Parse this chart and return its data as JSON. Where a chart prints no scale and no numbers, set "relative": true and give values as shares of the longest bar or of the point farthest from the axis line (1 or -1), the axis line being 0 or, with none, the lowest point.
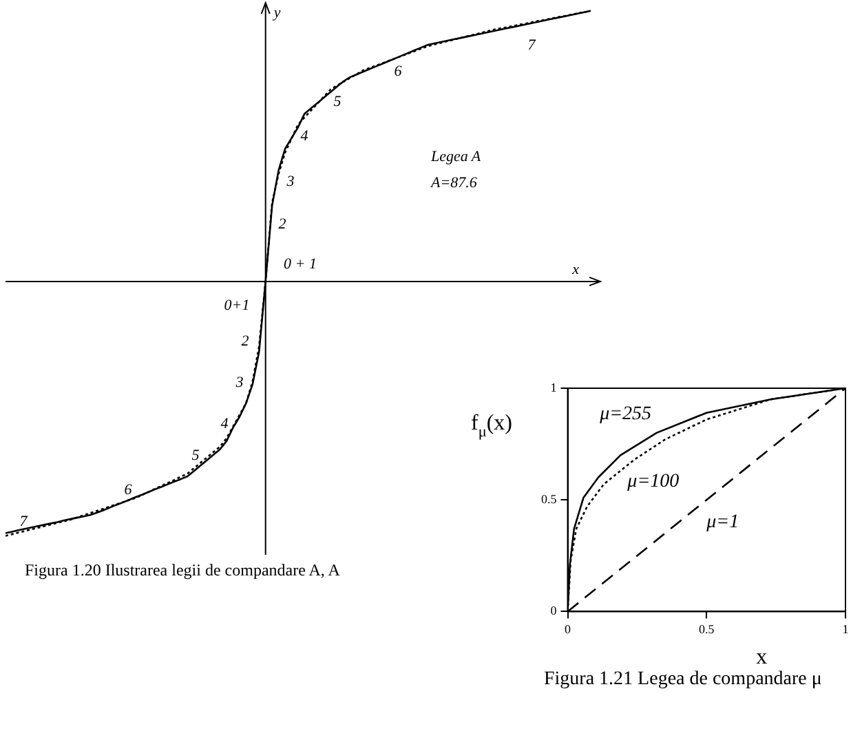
{
  "chart_data": [
    {
      "type": "line",
      "relative": true,
      "title": "Figura 1.20 Ilustrarea legii de compandare A, A",
      "xlabel": "x",
      "ylabel": "y",
      "annotations": [
        "Legea A",
        "A=87.6",
        "0 + 1",
        "2",
        "3",
        "4",
        "5",
        "6",
        "7",
        "0+1",
        "2",
        "3",
        "4",
        "5",
        "6",
        "7"
      ],
      "categories": [
        null,
        null,
        null,
        null,
        null,
        null,
        null,
        null,
        null,
        null,
        null,
        null,
        null,
        null,
        null,
        null,
        null,
        null,
        null,
        null,
        null,
        null,
        null,
        null,
        null,
        null,
        null,
        null,
        null,
        null,
        null,
        null,
        null,
        null,
        null,
        null,
        null,
        null,
        null,
        null,
        null,
        null,
        null,
        null,
        null,
        null,
        null,
        null,
        null,
        null,
        null,
        null,
        null,
        null,
        null,
        null,
        null,
        null,
        null,
        null,
        null,
        null,
        null,
        null,
        null,
        null,
        null,
        null,
        null,
        null,
        null,
        null,
        null,
        null,
        null,
        null,
        null,
        null,
        null,
        null,
        null,
        null,
        null,
        null,
        null,
        null,
        null,
        null,
        null,
        null,
        null
      ],
      "series": [
        {
          "color": "#000000",
          "line_style": "solid",
          "values": [
            -0.93,
            -0.925,
            -0.919,
            -0.914,
            -0.909,
            -0.904,
            -0.899,
            -0.894,
            -0.889,
            -0.883,
            -0.878,
            -0.873,
            -0.868,
            -0.863,
            -0.855,
            -0.846,
            -0.836,
            -0.826,
            -0.817,
            -0.807,
            -0.797,
            -0.788,
            -0.778,
            -0.768,
            -0.759,
            -0.749,
            -0.739,
            -0.73,
            -0.72,
            -0.7,
            -0.68,
            -0.66,
            -0.64,
            -0.62,
            -0.59,
            -0.54,
            -0.5,
            -0.45,
            -0.38,
            -0.26,
            0,
            0.28,
            0.41,
            0.49,
            0.53,
            0.57,
            0.62,
            0.64,
            0.66,
            0.68,
            0.7,
            0.72,
            0.74,
            0.755,
            0.765,
            0.775,
            0.785,
            0.795,
            0.805,
            0.815,
            0.825,
            0.835,
            0.845,
            0.855,
            0.865,
            0.875,
            0.88,
            0.885,
            0.89,
            0.895,
            0.9,
            0.905,
            0.91,
            0.915,
            0.92,
            0.925,
            0.93,
            0.935,
            0.94,
            0.945,
            0.95,
            0.955,
            0.96,
            0.965,
            0.97,
            0.975,
            0.98,
            0.985,
            0.99,
            0.995,
            1
          ]
        },
        {
          "color": "#000000",
          "line_style": "dotted",
          "values": [
            -0.94,
            -0.934,
            -0.928,
            -0.922,
            -0.916,
            -0.91,
            -0.904,
            -0.898,
            -0.892,
            -0.886,
            -0.88,
            -0.872,
            -0.864,
            -0.856,
            -0.848,
            -0.84,
            -0.832,
            -0.824,
            -0.816,
            -0.808,
            -0.8,
            -0.789,
            -0.778,
            -0.766,
            -0.755,
            -0.744,
            -0.733,
            -0.721,
            -0.71,
            -0.69,
            -0.67,
            -0.65,
            -0.63,
            -0.61,
            -0.579,
            -0.536,
            -0.493,
            -0.45,
            -0.37,
            -0.24,
            0,
            0.29,
            0.397,
            0.476,
            0.528,
            0.58,
            0.606,
            0.632,
            0.658,
            0.684,
            0.71,
            0.724,
            0.738,
            0.752,
            0.766,
            0.78,
            0.789,
            0.798,
            0.807,
            0.816,
            0.825,
            0.834,
            0.843,
            0.852,
            0.861,
            0.87,
            0.876,
            0.882,
            0.888,
            0.894,
            0.9,
            0.906,
            0.912,
            0.918,
            0.924,
            0.93,
            0.935,
            0.939,
            0.944,
            0.949,
            0.953,
            0.958,
            0.963,
            0.967,
            0.972,
            0.977,
            0.981,
            0.986,
            0.991,
            0.995,
            1
          ]
        }
      ]
    },
    {
      "type": "line",
      "title": "Figura 1.21 Legea de compandare μ",
      "xlabel": "x",
      "ylabel": "f$_{μ}$(x)",
      "xlim": [
        0,
        1
      ],
      "ylim": [
        0,
        1
      ],
      "xticks": [
        0,
        0.5,
        1
      ],
      "yticks": [
        0,
        0.5,
        1
      ],
      "series": [
        {
          "name": "μ=255",
          "color": "#000000",
          "line_style": "solid",
          "x": [
            0,
            0.008,
            0.023,
            0.057,
            0.11,
            0.19,
            0.32,
            0.5,
            0.73,
            1
          ],
          "values": [
            0,
            0.21,
            0.37,
            0.51,
            0.6,
            0.7,
            0.8,
            0.89,
            0.95,
            1
          ]
        },
        {
          "name": "μ=100",
          "color": "#000000",
          "line_style": "dotted",
          "x": [
            0,
            0.011,
            0.031,
            0.07,
            0.13,
            0.24,
            0.35,
            0.5,
            0.73,
            1
          ],
          "values": [
            0,
            0.23,
            0.37,
            0.47,
            0.57,
            0.68,
            0.77,
            0.86,
            0.95,
            1
          ]
        },
        {
          "name": "μ=1",
          "color": "#000000",
          "line_style": "dashed",
          "x": [
            0,
            0.5,
            1
          ],
          "values": [
            0,
            0.5,
            1
          ]
        }
      ]
    }
  ]
}
